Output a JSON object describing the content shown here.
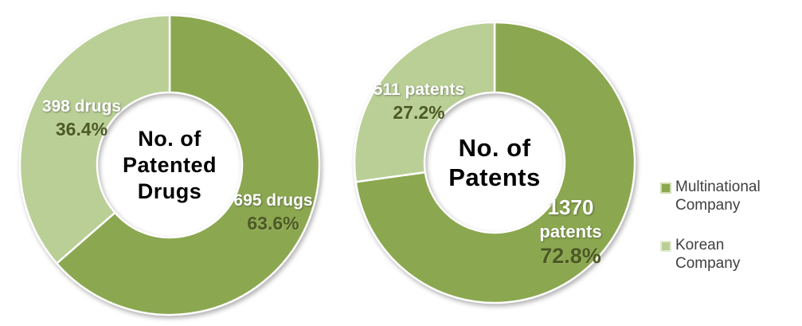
{
  "colors": {
    "multinational": "#8ba750",
    "korean": "#b9cf96",
    "percent_text": "#4c5924",
    "value_text": "#ffffff",
    "center_text": "#000000",
    "legend_text": "#404040",
    "background": "#ffffff",
    "slice_border": "#ffffff"
  },
  "chart_data": [
    {
      "type": "pie",
      "subtype": "donut",
      "title": "No. of Patented Drugs",
      "center_label_lines": [
        "No. of",
        "Patented",
        "Drugs"
      ],
      "start_angle_deg": 0,
      "direction": "clockwise",
      "legend_position": "right",
      "slices": [
        {
          "legend": "Multinational Company",
          "value": 695,
          "unit": "drugs",
          "percent": 63.6,
          "label_lines": [
            "695 drugs"
          ],
          "label_percent": "63.6%",
          "color": "#8ba750"
        },
        {
          "legend": "Korean Company",
          "value": 398,
          "unit": "drugs",
          "percent": 36.4,
          "label_lines": [
            "398 drugs"
          ],
          "label_percent": "36.4%",
          "color": "#b9cf96"
        }
      ]
    },
    {
      "type": "pie",
      "subtype": "donut",
      "title": "No. of Patents",
      "center_label_lines": [
        "No. of",
        "Patents"
      ],
      "start_angle_deg": 0,
      "direction": "clockwise",
      "legend_position": "right",
      "slices": [
        {
          "legend": "Multinational Company",
          "value": 1370,
          "unit": "patents",
          "percent": 72.8,
          "label_lines": [
            "1370",
            "patents"
          ],
          "label_percent": "72.8%",
          "color": "#8ba750"
        },
        {
          "legend": "Korean Company",
          "value": 511,
          "unit": "patents",
          "percent": 27.2,
          "label_lines": [
            "511 patents"
          ],
          "label_percent": "27.2%",
          "color": "#b9cf96"
        }
      ]
    }
  ],
  "legend": {
    "items": [
      {
        "label": "Multinational Company",
        "color": "#8ba750"
      },
      {
        "label": "Korean Company",
        "color": "#b9cf96"
      }
    ]
  }
}
